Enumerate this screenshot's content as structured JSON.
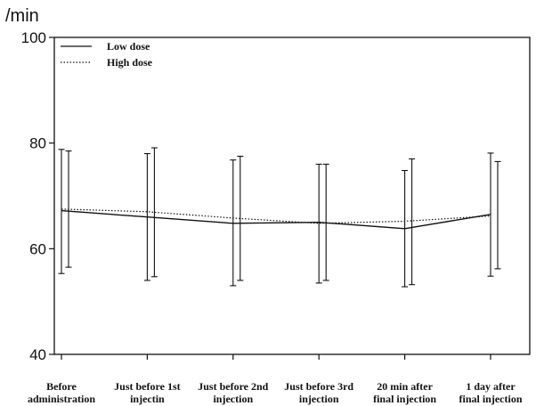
{
  "chart_data": {
    "type": "line",
    "unit_label": "/min",
    "categories": [
      [
        "Before",
        "administration"
      ],
      [
        "Just before 1st",
        "injectin"
      ],
      [
        "Just before 2nd",
        "injection"
      ],
      [
        "Just before 3rd",
        "injection"
      ],
      [
        "20 min after",
        "final injection"
      ],
      [
        "1 day after",
        "final injection"
      ]
    ],
    "ylim": [
      40,
      100
    ],
    "yticks": [
      "40",
      "60",
      "80",
      "100"
    ],
    "legend_position": "top-left",
    "grid": false,
    "series": [
      {
        "name": "Low dose",
        "line_style": "solid",
        "values": [
          67.2,
          66.0,
          64.8,
          65.0,
          63.8,
          66.5
        ],
        "error_low": [
          55.3,
          54.0,
          53.0,
          53.5,
          52.8,
          54.8
        ],
        "error_high": [
          78.8,
          78.0,
          76.8,
          76.0,
          74.8,
          78.1
        ]
      },
      {
        "name": "High dose",
        "line_style": "dotted",
        "values": [
          67.5,
          67.0,
          65.8,
          64.8,
          65.2,
          66.2
        ],
        "error_low": [
          56.5,
          54.7,
          54.0,
          54.0,
          53.2,
          56.2
        ],
        "error_high": [
          78.5,
          79.1,
          77.5,
          76.0,
          77.0,
          76.5
        ]
      }
    ]
  }
}
